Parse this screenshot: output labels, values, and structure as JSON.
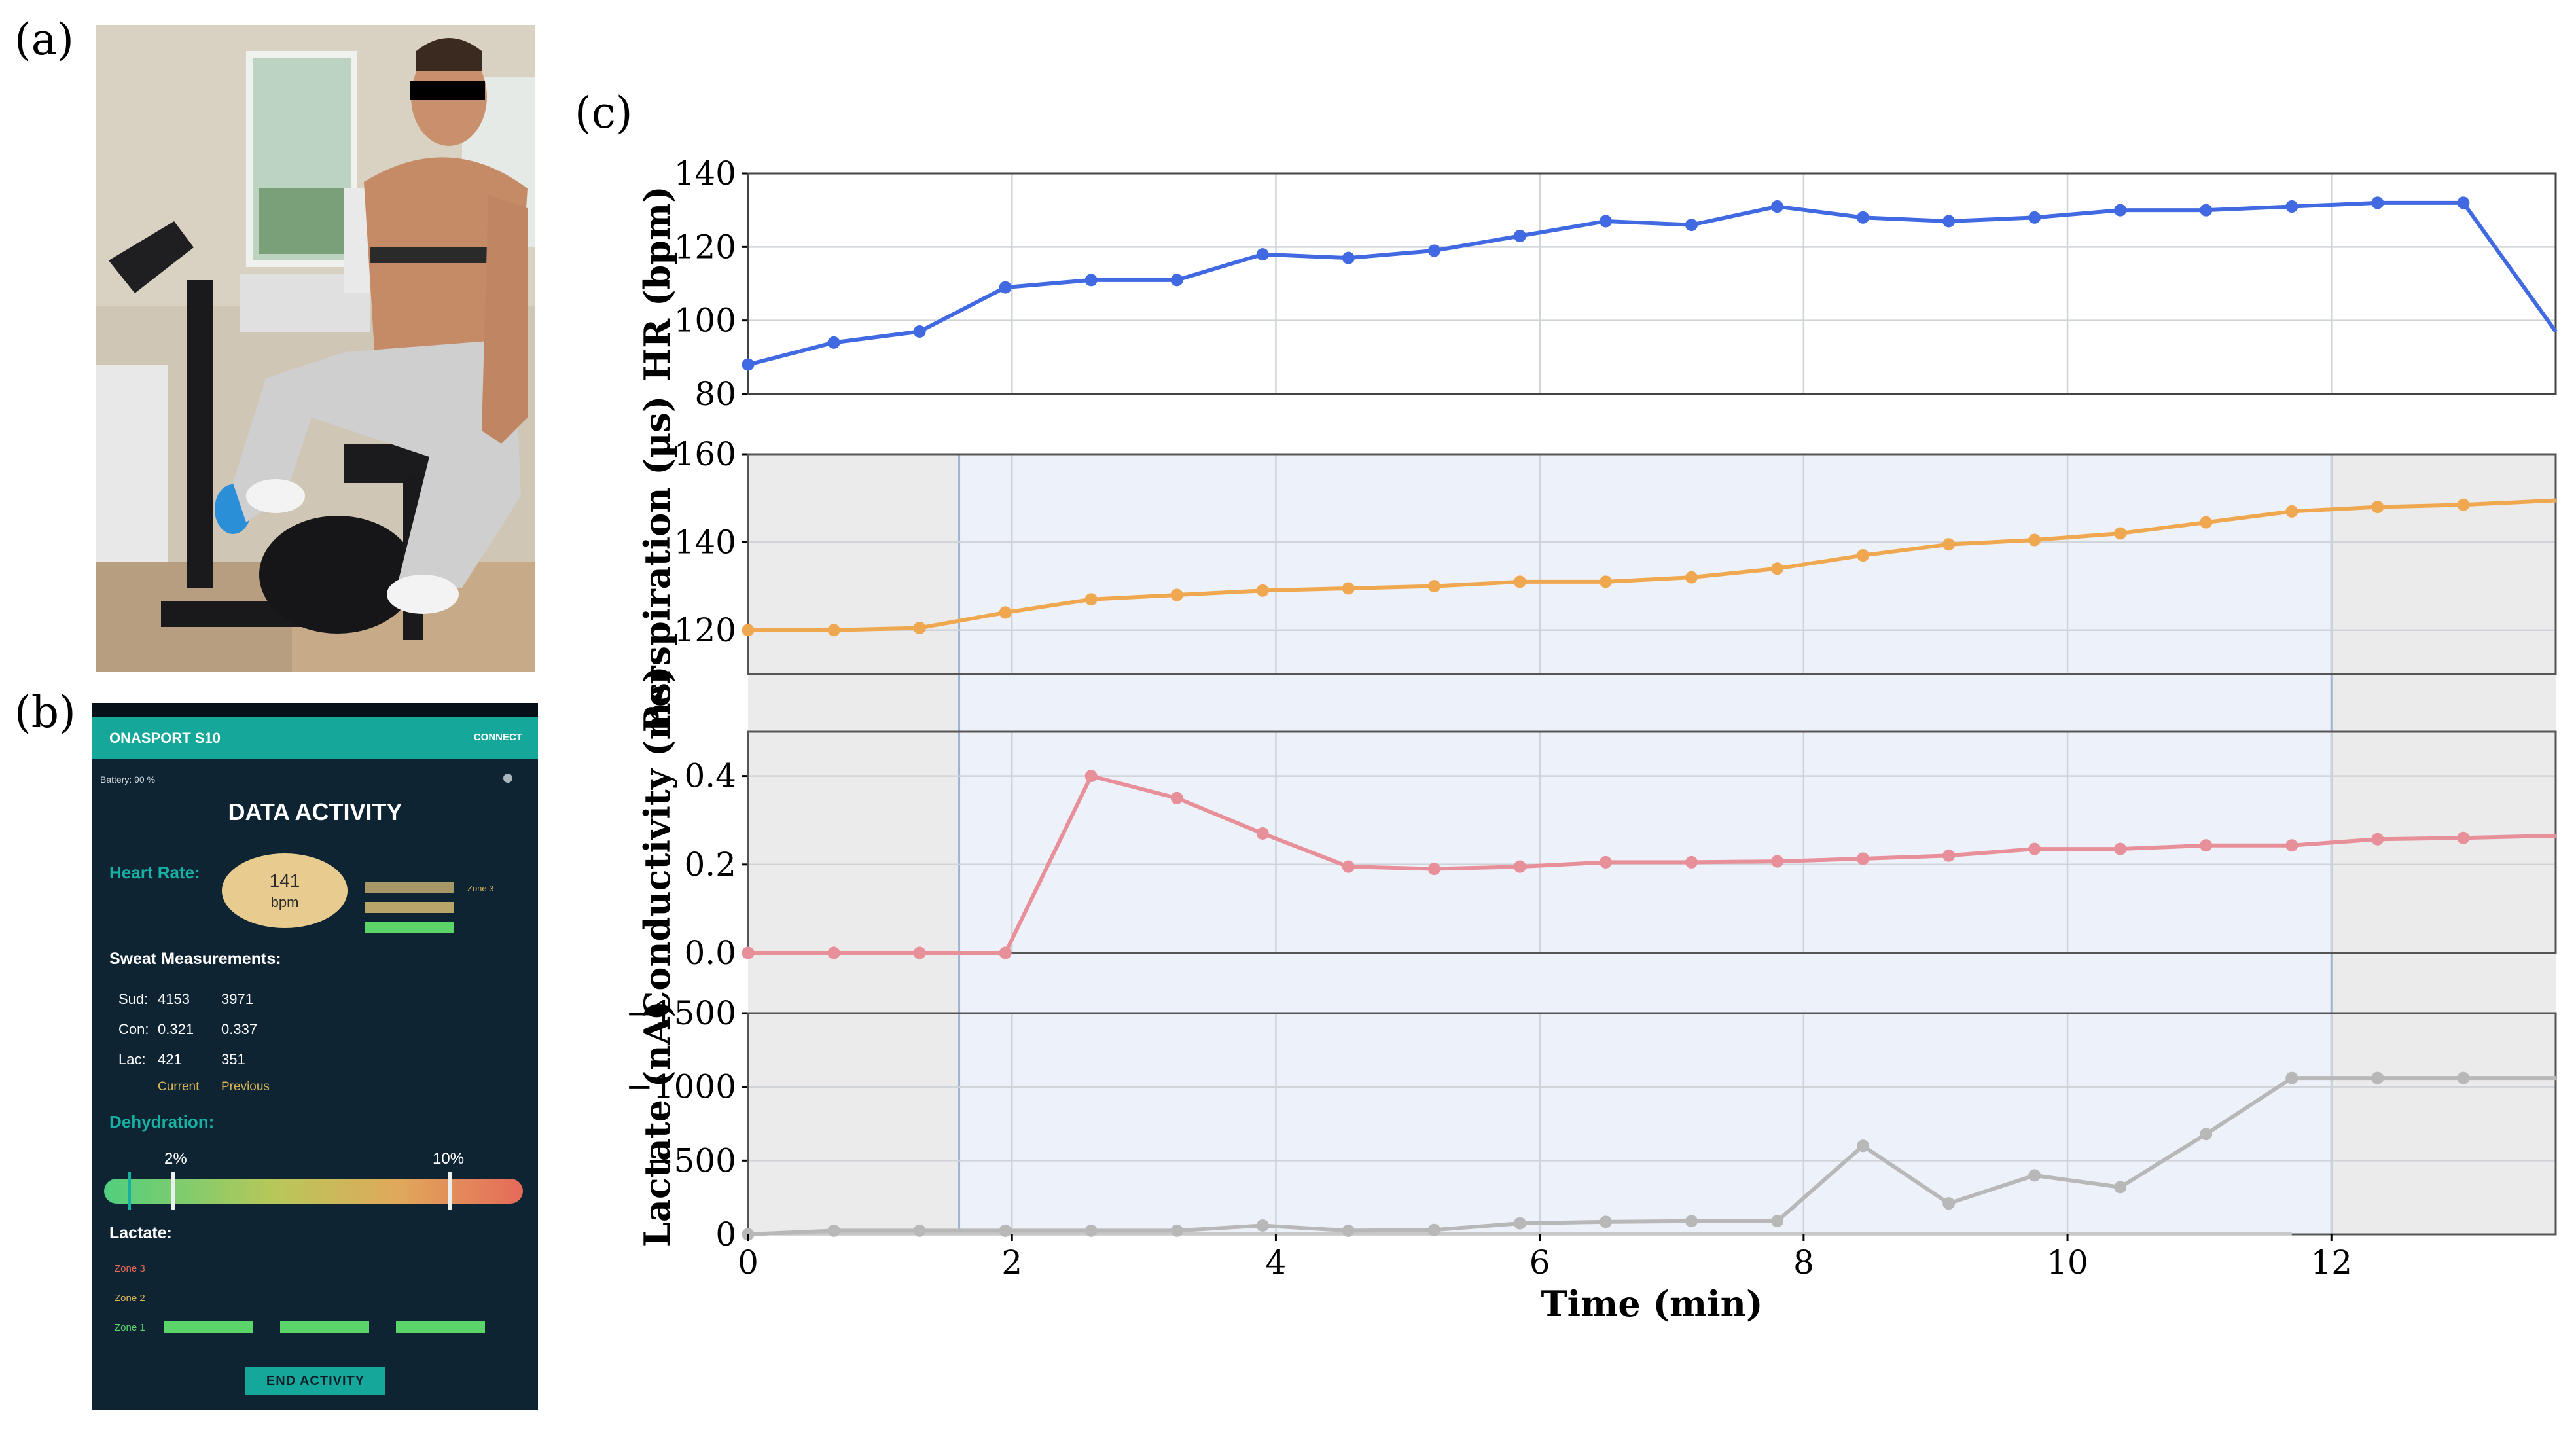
{
  "panels": {
    "a": "(a)",
    "b": "(b)",
    "c": "(c)"
  },
  "app": {
    "title": "ONASPORT S10",
    "connect_label": "CONNECT",
    "battery": "Battery: 90 %",
    "heading": "DATA ACTIVITY",
    "heart_rate_label": "Heart Rate:",
    "heart_rate_value": "141",
    "heart_rate_unit": "bpm",
    "heart_zone": "Zone 3",
    "sweat_label": "Sweat Measurements:",
    "measurements": [
      {
        "label": "Sud:",
        "current": "4153",
        "previous": "3971"
      },
      {
        "label": "Con:",
        "current": "0.321",
        "previous": "0.337"
      },
      {
        "label": "Lac:",
        "current": "421",
        "previous": "351"
      }
    ],
    "current_label": "Current",
    "previous_label": "Previous",
    "dehydration_label": "Dehydration:",
    "dehydration_marks": [
      "2%",
      "10%"
    ],
    "lactate_label": "Lactate:",
    "lactate_zones": [
      "Zone 3",
      "Zone 2",
      "Zone 1"
    ],
    "end_button": "END ACTIVITY",
    "colors": {
      "teal": "#16a79b",
      "background": "#0e2433",
      "zone_green": "#5bd56a",
      "zone_tan": "#b7a66a"
    }
  },
  "chart_data": {
    "type": "line",
    "xlabel": "Time (min)",
    "xlim": [
      0,
      13.7
    ],
    "xticks": [
      0,
      2,
      4,
      6,
      8,
      10,
      12
    ],
    "highlight_region": [
      1.6,
      12
    ],
    "grid": true,
    "x": [
      0,
      0.65,
      1.3,
      1.95,
      2.6,
      3.25,
      3.9,
      4.55,
      5.2,
      5.85,
      6.5,
      7.15,
      7.8,
      8.45,
      9.1,
      9.75,
      10.4,
      11.05,
      11.7,
      12.35,
      13.0,
      13.7
    ],
    "subplots": [
      {
        "name": "hr",
        "ylabel": "HR (bpm)",
        "ylim": [
          80,
          140
        ],
        "yticks": [
          80,
          100,
          120,
          140
        ],
        "color": "#4169e1",
        "y": [
          88,
          94,
          97,
          109,
          111,
          111,
          118,
          117,
          119,
          123,
          127,
          126,
          131,
          128,
          127,
          128,
          130,
          130,
          131,
          132,
          132,
          97
        ]
      },
      {
        "name": "perspiration",
        "ylabel": "Perspiration (µs)",
        "ylim": [
          110,
          160
        ],
        "yticks": [
          120,
          140,
          160
        ],
        "color": "#f0a850",
        "y": [
          120,
          120,
          120.5,
          124,
          127,
          128,
          129,
          129.5,
          130,
          131,
          131,
          132,
          134,
          137,
          139.5,
          140.5,
          142,
          144.5,
          147,
          148,
          148.5,
          149.5
        ]
      },
      {
        "name": "conductivity",
        "ylabel": "Conductivity (ms)",
        "ylim": [
          0,
          0.5
        ],
        "yticks": [
          0.0,
          0.2,
          0.4
        ],
        "ytick_labels": [
          "0.0",
          "0.2",
          "0.4"
        ],
        "color": "#e8909a",
        "y": [
          0,
          0,
          0,
          0,
          0.4,
          0.35,
          0.27,
          0.195,
          0.19,
          0.195,
          0.205,
          0.205,
          0.207,
          0.213,
          0.22,
          0.235,
          0.235,
          0.243,
          0.243,
          0.257,
          0.26,
          0.265
        ]
      },
      {
        "name": "lactate",
        "ylabel": "Lactate (nA)",
        "ylim": [
          0,
          -1500
        ],
        "yticks": [
          0,
          -500,
          -1000,
          -1500
        ],
        "ytick_labels": [
          "0",
          "−500",
          "−1000",
          "−1500"
        ],
        "color": "#b8b8b8",
        "y": [
          0,
          -25,
          -25,
          -25,
          -25,
          -25,
          -60,
          -25,
          -30,
          -75,
          -85,
          -90,
          -90,
          -600,
          -210,
          -400,
          -320,
          -680,
          -1060,
          -1060,
          -1060,
          -1060
        ],
        "baseline": {
          "x": [
            0,
            0.65,
            1.3,
            1.95,
            2.6,
            3.25,
            3.9,
            4.55,
            5.2,
            5.85,
            6.5,
            7.15,
            7.8,
            8.45,
            9.1,
            9.75,
            10.4,
            11.05,
            11.7
          ],
          "y": [
            -5,
            -5,
            -5,
            -5,
            -5,
            -5,
            -5,
            -5,
            -5,
            -5,
            -5,
            -5,
            -5,
            -5,
            -5,
            -5,
            -5,
            -5,
            -5
          ]
        }
      }
    ]
  }
}
